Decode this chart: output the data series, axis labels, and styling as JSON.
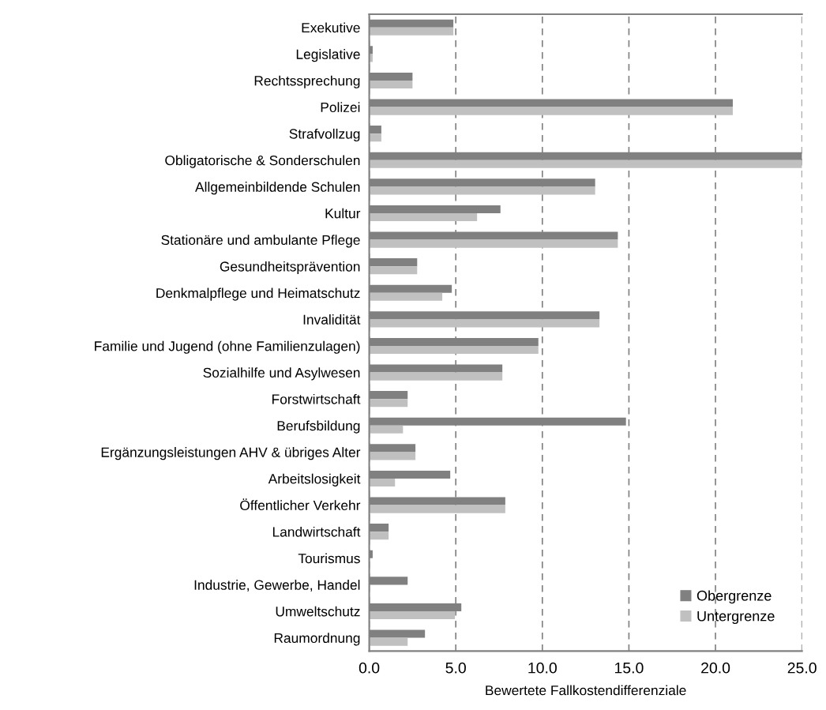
{
  "chart_data": {
    "type": "bar",
    "orientation": "horizontal",
    "xlabel": "Bewertete Fallkostendifferenziale",
    "categories": [
      "Exekutive",
      "Legislative",
      "Rechtssprechung",
      "Polizei",
      "Strafvollzug",
      "Obligatorische & Sonderschulen",
      "Allgemeinbildende Schulen",
      "Kultur",
      "Stationäre und ambulante Pflege",
      "Gesundheitsprävention",
      "Denkmalpflege und Heimatschutz",
      "Invalidität",
      "Familie und Jugend (ohne Familienzulagen)",
      "Sozialhilfe und Asylwesen",
      "Forstwirtschaft",
      "Berufsbildung",
      "Ergänzungsleistungen AHV & übriges Alter",
      "Arbeitslosigkeit",
      "Öffentlicher Verkehr",
      "Landwirtschaft",
      "Tourismus",
      "Industrie, Gewerbe, Handel",
      "Umweltschutz",
      "Raumordnung"
    ],
    "series": [
      {
        "name": "Obergrenze",
        "color": "#808080",
        "values": [
          4.86,
          0.2,
          2.5,
          21.0,
          0.7,
          25.0,
          13.05,
          7.58,
          14.36,
          2.77,
          4.77,
          13.3,
          9.77,
          7.69,
          2.22,
          14.83,
          2.67,
          4.68,
          7.86,
          1.12,
          0.2,
          2.22,
          5.32,
          3.22
        ]
      },
      {
        "name": "Untergrenze",
        "color": "#c0c0c0",
        "values": [
          4.86,
          0.2,
          2.5,
          21.0,
          0.7,
          25.0,
          13.05,
          6.23,
          14.36,
          2.77,
          4.22,
          13.3,
          9.77,
          7.69,
          2.22,
          1.95,
          2.67,
          1.49,
          7.86,
          1.12,
          0,
          0,
          4.95,
          2.22
        ]
      }
    ],
    "xlim": [
      0,
      25
    ],
    "xticks": [
      {
        "value": 0,
        "label": "0.0"
      },
      {
        "value": 5,
        "label": "5.0"
      },
      {
        "value": 10,
        "label": "10.0"
      },
      {
        "value": 15,
        "label": "15.0"
      },
      {
        "value": 20,
        "label": "20.0"
      },
      {
        "value": 25,
        "label": "25.0"
      }
    ],
    "grid": "x",
    "legend": "bottom right"
  }
}
